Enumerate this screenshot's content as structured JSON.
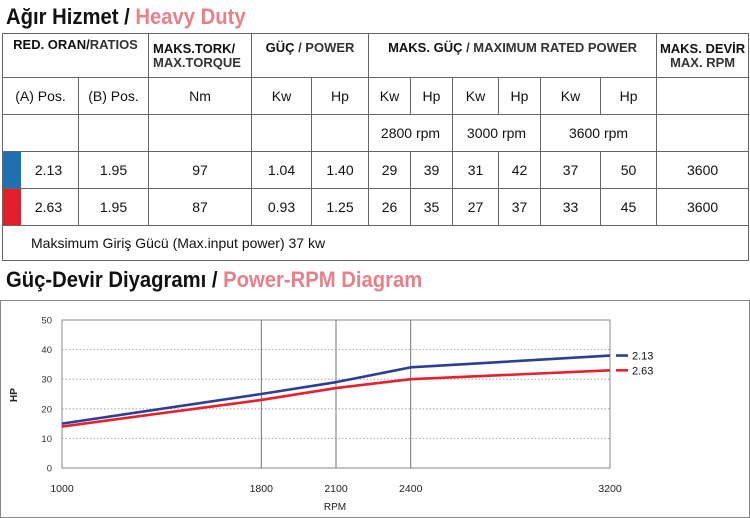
{
  "heading1": {
    "tr": "Ağır Hizmet",
    "sep": "/",
    "en": "Heavy Duty"
  },
  "heading2": {
    "tr": "Güç-Devir Diyagramı",
    "sep": "/",
    "en": "Power-RPM Diagram"
  },
  "table": {
    "header": {
      "ratios_tr": "RED. ORAN/",
      "ratios_en": "RATIOS",
      "torque_tr": "MAKS.TORK/",
      "torque_en": "MAX.TORQUE",
      "power_tr": "GÜÇ",
      "power_en": " / POWER",
      "maxpower_tr": "MAKS.  GÜÇ",
      "maxpower_en": " / MAXIMUM RATED POWER",
      "maxrpm_tr": "MAKS. DEVİR",
      "maxrpm_en": "MAX. RPM"
    },
    "subheader": {
      "pos_a": "(A) Pos.",
      "pos_b": "(B) Pos.",
      "torque_unit": "Nm",
      "kw": "Kw",
      "hp": "Hp"
    },
    "rpm_labels": [
      "2800 rpm",
      "3000 rpm",
      "3600 rpm"
    ],
    "rows": [
      {
        "color": "#1f6fb5",
        "pos_a": "2.13",
        "pos_b": "1.95",
        "torque": "97",
        "kw": "1.04",
        "hp": "1.40",
        "kw2800": "29",
        "hp2800": "39",
        "kw3000": "31",
        "hp3000": "42",
        "kw3600": "37",
        "hp3600": "50",
        "max_rpm": "3600"
      },
      {
        "color": "#e41e2a",
        "pos_a": "2.63",
        "pos_b": "1.95",
        "torque": "87",
        "kw": "0.93",
        "hp": "1.25",
        "kw2800": "26",
        "hp2800": "35",
        "kw3000": "27",
        "hp3000": "37",
        "kw3600": "33",
        "hp3600": "45",
        "max_rpm": "3600"
      }
    ],
    "note": "Maksimum Giriş Gücü (Max.input power) 37 kw"
  },
  "chart_data": {
    "type": "line",
    "x": [
      1000,
      1800,
      2100,
      2400,
      3200
    ],
    "series": [
      {
        "name": "2.13",
        "color": "#2b3f96",
        "values": [
          15,
          25,
          29,
          34,
          38
        ]
      },
      {
        "name": "2.63",
        "color": "#e8202e",
        "values": [
          14,
          23,
          27,
          30,
          33
        ]
      }
    ],
    "xlabel": "RPM",
    "ylabel": "HP",
    "xticks": [
      "1000",
      "1800",
      "2100",
      "2400",
      "3200"
    ],
    "yticks": [
      "0",
      "10",
      "20",
      "30",
      "40",
      "50"
    ],
    "xlim": [
      1000,
      3200
    ],
    "ylim": [
      0,
      50
    ],
    "grid": "horizontal dotted, vertical at 1800/2100/2400",
    "legend": "right"
  }
}
